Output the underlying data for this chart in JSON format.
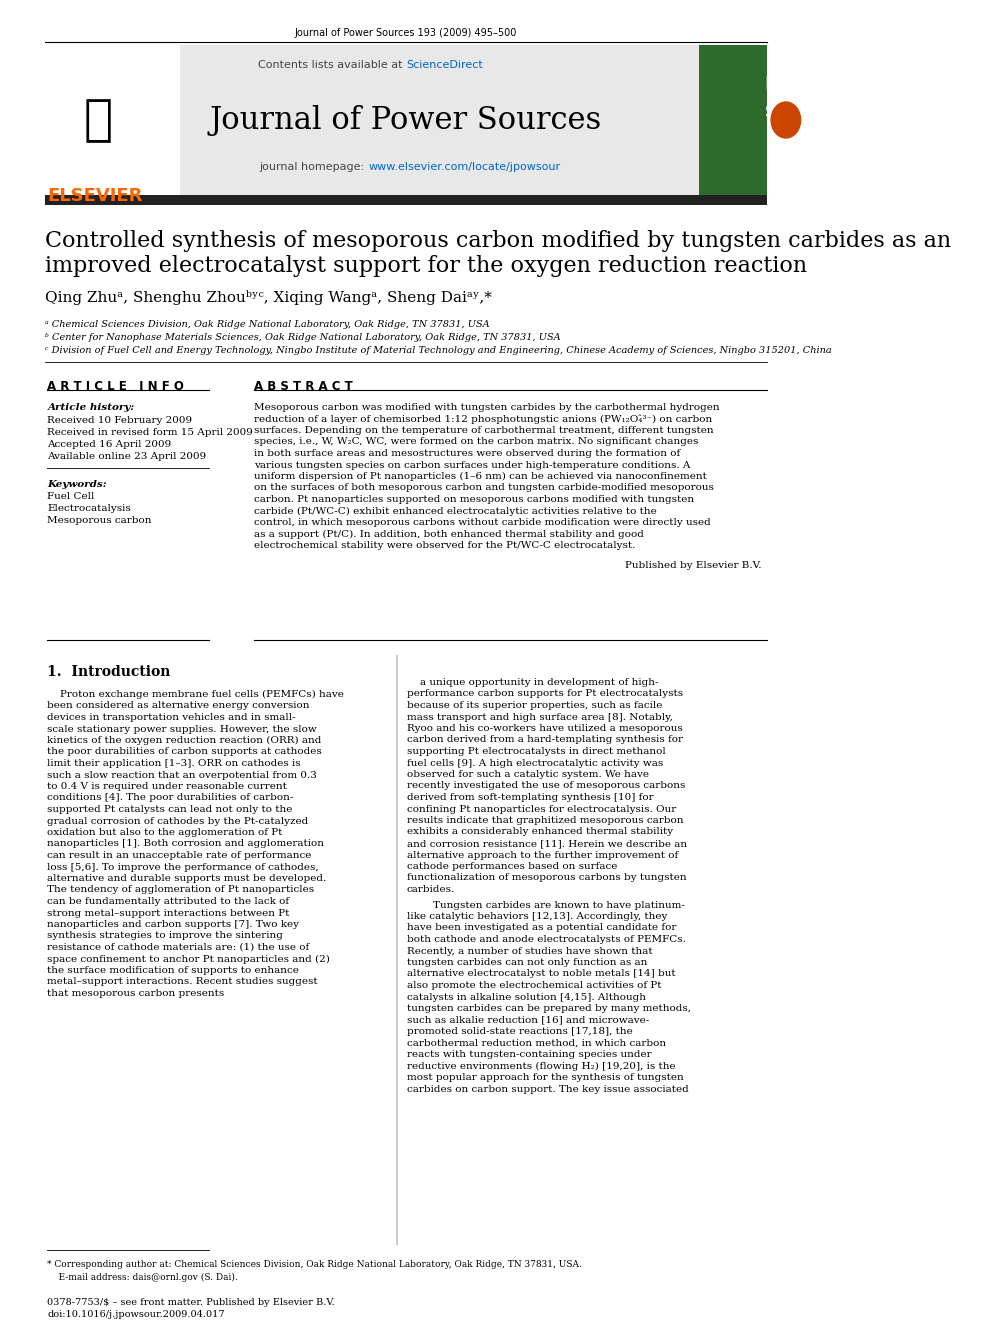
{
  "page_title": "Journal of Power Sources 193 (2009) 495–500",
  "journal_name": "Journal of Power Sources",
  "contents_text": "Contents lists available at ",
  "sciencedirect_text": "ScienceDirect",
  "homepage_text": "journal homepage: ",
  "homepage_url": "www.elsevier.com/locate/jpowsour",
  "paper_title_line1": "Controlled synthesis of mesoporous carbon modified by tungsten carbides as an",
  "paper_title_line2": "improved electrocatalyst support for the oxygen reduction reaction",
  "authors": "Qing Zhuᵃ, Shenghu Zhouᵇʸᶜ, Xiqing Wangᵃ, Sheng Daiᵃʸ,*",
  "affil_a": "ᵃ Chemical Sciences Division, Oak Ridge National Laboratory, Oak Ridge, TN 37831, USA",
  "affil_b": "ᵇ Center for Nanophase Materials Sciences, Oak Ridge National Laboratory, Oak Ridge, TN 37831, USA",
  "affil_c": "ᶜ Division of Fuel Cell and Energy Technology, Ningbo Institute of Material Technology and Engineering, Chinese Academy of Sciences, Ningbo 315201, China",
  "article_info_header": "A R T I C L E   I N F O",
  "abstract_header": "A B S T R A C T",
  "article_history_label": "Article history:",
  "received": "Received 10 February 2009",
  "received_revised": "Received in revised form 15 April 2009",
  "accepted": "Accepted 16 April 2009",
  "available": "Available online 23 April 2009",
  "keywords_label": "Keywords:",
  "keyword1": "Fuel Cell",
  "keyword2": "Electrocatalysis",
  "keyword3": "Mesoporous carbon",
  "abstract_text": "Mesoporous carbon was modified with tungsten carbides by the carbothermal hydrogen reduction of a layer of chemisorbed 1:12 phosphotungstic anions (PW₁₂O₄̂³⁻) on carbon surfaces. Depending on the temperature of carbothermal treatment, different tungsten species, i.e., W, W₂C, WC, were formed on the carbon matrix. No significant changes in both surface areas and mesostructures were observed during the formation of various tungsten species on carbon surfaces under high-temperature conditions. A uniform dispersion of Pt nanoparticles (1–6 nm) can be achieved via nanoconfinement on the surfaces of both mesoporous carbon and tungsten carbide-modified mesoporous carbon. Pt nanoparticles supported on mesoporous carbons modified with tungsten carbide (Pt/WC-C) exhibit enhanced electrocatalytic activities relative to the control, in which mesoporous carbons without carbide modification were directly used as a support (Pt/C). In addition, both enhanced thermal stability and good electrochemical stability were observed for the Pt/WC-C electrocatalyst.",
  "published_by": "Published by Elsevier B.V.",
  "section1_header": "1.  Introduction",
  "intro_col1": "Proton exchange membrane fuel cells (PEMFCs) have been considered as alternative energy conversion devices in transportation vehicles and in small-scale stationary power supplies. However, the slow kinetics of the oxygen reduction reaction (ORR) and the poor durabilities of carbon supports at cathodes limit their application [1–3]. ORR on cathodes is such a slow reaction that an overpotential from 0.3 to 0.4 V is required under reasonable current conditions [4]. The poor durabilities of carbon-supported Pt catalysts can lead not only to the gradual corrosion of cathodes by the Pt-catalyzed oxidation but also to the agglomeration of Pt nanoparticles [1]. Both corrosion and agglomeration can result in an unacceptable rate of performance loss [5,6]. To improve the performance of cathodes, alternative and durable supports must be developed. The tendency of agglomeration of Pt nanoparticles can be fundamentally attributed to the lack of strong metal–support interactions between Pt nanoparticles and carbon supports [7]. Two key synthesis strategies to improve the sintering resistance of cathode materials are: (1) the use of space confinement to anchor Pt nanoparticles and (2) the surface modification of supports to enhance metal–support interactions. Recent studies suggest that mesoporous carbon presents",
  "intro_col2": "a unique opportunity in development of high-performance carbon supports for Pt electrocatalysts because of its superior properties, such as facile mass transport and high surface area [8]. Notably, Ryoo and his co-workers have utilized a mesoporous carbon derived from a hard-templating synthesis for supporting Pt electrocatalysts in direct methanol fuel cells [9]. A high electrocatalytic activity was observed for such a catalytic system. We have recently investigated the use of mesoporous carbons derived from soft-templating synthesis [10] for confining Pt nanoparticles for electrocatalysis. Our results indicate that graphitized mesoporous carbon exhibits a considerably enhanced thermal stability and corrosion resistance [11]. Herein we describe an alternative approach to the further improvement of cathode performances based on surface functionalization of mesoporous carbons by tungsten carbides.",
  "intro_col2b": "    Tungsten carbides are known to have platinum-like catalytic behaviors [12,13]. Accordingly, they have been investigated as a potential candidate for both cathode and anode electrocatalysts of PEMFCs. Recently, a number of studies have shown that tungsten carbides can not only function as an alternative electrocatalyst to noble metals [14] but also promote the electrochemical activities of Pt catalysts in alkaline solution [4,15]. Although tungsten carbides can be prepared by many methods, such as alkalie reduction [16] and microwave-promoted solid-state reactions [17,18], the carbothermal reduction method, in which carbon reacts with tungsten-containing species under reductive environments (flowing H₂) [19,20], is the most popular approach for the synthesis of tungsten carbides on carbon support. The key issue associated",
  "footnote_corresponding": "* Corresponding author at: Chemical Sciences Division, Oak Ridge National Laboratory, Oak Ridge, TN 37831, USA.",
  "footnote_email": "    E-mail address: dais@ornl.gov (S. Dai).",
  "issn_line": "0378-7753/$ – see front matter. Published by Elsevier B.V.",
  "doi_line": "doi:10.1016/j.jpowsour.2009.04.017",
  "header_bg": "#e8e8e8",
  "dark_bar_color": "#222222",
  "journal_cover_bg": "#2d6b2d",
  "elsevier_orange": "#FF6600",
  "link_color": "#0066CC",
  "title_color": "#000000",
  "text_color": "#000000"
}
